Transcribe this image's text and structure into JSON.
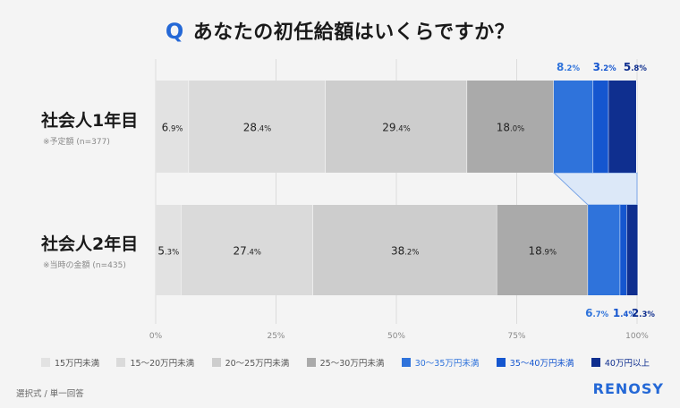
{
  "title": {
    "q": "Q",
    "text": "あなたの初任給額はいくらですか？"
  },
  "rows": [
    {
      "label": "社会人1年目",
      "sub": "※予定額 (n=377)"
    },
    {
      "label": "社会人2年目",
      "sub": "※当時の金額 (n=435)"
    }
  ],
  "footer": {
    "note": "選択式 / 単一回答",
    "brand": "RENOSY"
  },
  "chart_data": {
    "type": "bar",
    "orientation": "horizontal-stacked-100",
    "categories": [
      "社会人1年目",
      "社会人2年目"
    ],
    "series": [
      {
        "name": "15万円未満",
        "color": "#e2e2e2",
        "label_color": "#222",
        "values": [
          6.9,
          5.3
        ]
      },
      {
        "name": "15〜20万円未満",
        "color": "#dadada",
        "label_color": "#222",
        "values": [
          28.4,
          27.4
        ]
      },
      {
        "name": "20〜25万円未満",
        "color": "#cdcdcd",
        "label_color": "#222",
        "values": [
          29.4,
          38.2
        ]
      },
      {
        "name": "25〜30万円未満",
        "color": "#aaaaaa",
        "label_color": "#222",
        "values": [
          18.0,
          18.9
        ]
      },
      {
        "name": "30〜35万円未満",
        "color": "#2f73db",
        "label_color": "#2f73db",
        "values": [
          8.2,
          6.7
        ]
      },
      {
        "name": "35〜40万円未満",
        "color": "#1556cf",
        "label_color": "#1556cf",
        "values": [
          3.2,
          1.4
        ]
      },
      {
        "name": "40万円以上",
        "color": "#0f2f8f",
        "label_color": "#0f2f8f",
        "values": [
          5.8,
          2.3
        ]
      }
    ],
    "xlim": [
      0,
      100
    ],
    "x_ticks": [
      "0%",
      "25%",
      "50%",
      "75%",
      "100%"
    ],
    "grid": true,
    "legend_position": "bottom",
    "highlight_color": "#dce8f8"
  }
}
